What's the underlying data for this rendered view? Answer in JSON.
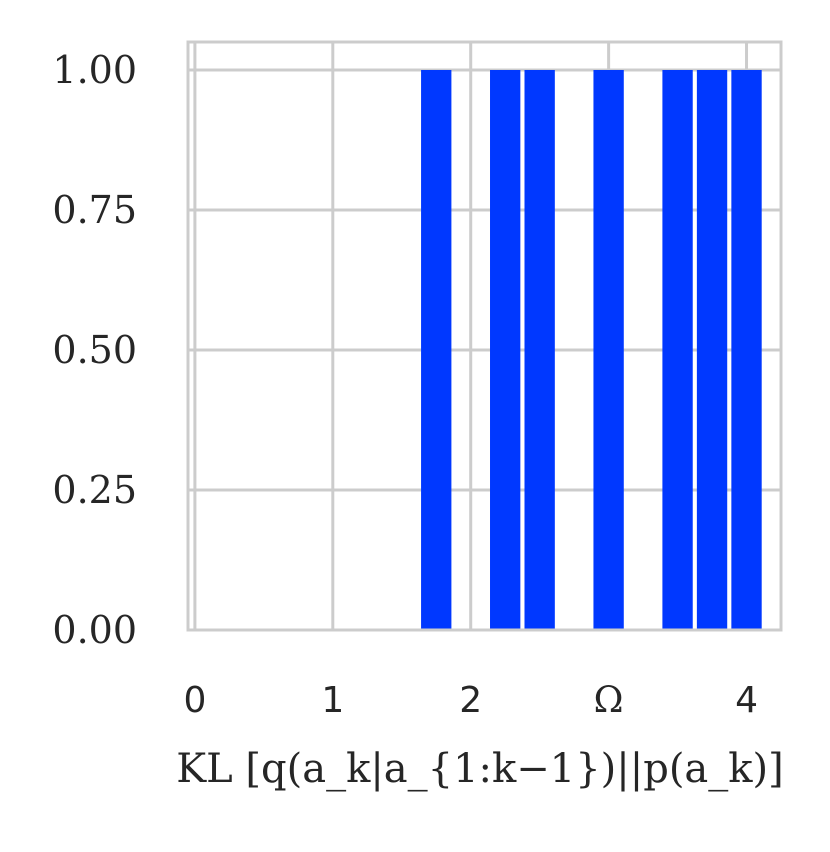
{
  "chart_data": {
    "type": "bar",
    "title": "",
    "xlabel": "KL [q(a_k|a_{1:k−1})||p(a_k)]",
    "ylabel": "",
    "xlim": [
      -0.05,
      4.25
    ],
    "ylim": [
      0.0,
      1.05
    ],
    "x_ticks": [
      {
        "value": 0,
        "label": "0"
      },
      {
        "value": 1,
        "label": "1"
      },
      {
        "value": 2,
        "label": "2"
      },
      {
        "value": 3,
        "label": "Ω"
      },
      {
        "value": 4,
        "label": "4"
      }
    ],
    "y_ticks": [
      {
        "value": 0.0,
        "label": "0.00"
      },
      {
        "value": 0.25,
        "label": "0.25"
      },
      {
        "value": 0.5,
        "label": "0.50"
      },
      {
        "value": 0.75,
        "label": "0.75"
      },
      {
        "value": 1.0,
        "label": "1.00"
      }
    ],
    "bar_width": 0.22,
    "x": [
      1.75,
      2.25,
      2.5,
      3.0,
      3.5,
      3.75,
      4.0
    ],
    "values": [
      1.0,
      1.0,
      1.0,
      1.0,
      1.0,
      1.0,
      1.0
    ],
    "grid": true,
    "colors": {
      "bar": "#0038ff",
      "grid": "#cccccc",
      "axes": "#cccccc",
      "text": "#262626"
    }
  }
}
